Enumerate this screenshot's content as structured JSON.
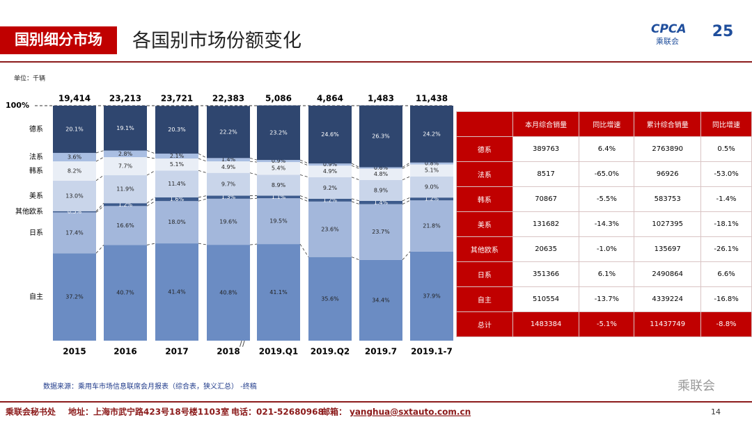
{
  "header": {
    "section": "国别细分市场",
    "title": "各国别市场份额变化",
    "logo": "CPCA",
    "logo_sub": "乘联会"
  },
  "chart_data": {
    "type": "stacked_bar",
    "unit": "单位：千辆",
    "categories": [
      "2015",
      "2016",
      "2017",
      "2018",
      "2019.Q1",
      "2019.Q2",
      "2019.7",
      "2019.1-7"
    ],
    "totals": {
      "values": [
        19414,
        23213,
        23721,
        22383,
        5086,
        4864,
        1483,
        11438
      ],
      "value_labels": [
        "19,414",
        "23,213",
        "23,721",
        "22,383",
        "5,086",
        "4,864",
        "1,483",
        "11,438"
      ]
    },
    "ylim": [
      0,
      100
    ],
    "yticks": [
      {
        "value": 100,
        "label": "100%"
      }
    ],
    "series": [
      {
        "name": "自主",
        "color": "#6b8cc3",
        "values": [
          37.2,
          40.7,
          41.4,
          40.8,
          41.1,
          35.6,
          34.4,
          37.9
        ],
        "value_labels": [
          "37.2%",
          "40.7%",
          "41.4%",
          "40.8%",
          "41.1%",
          "35.6%",
          "34.4%",
          "37.9%"
        ]
      },
      {
        "name": "日系",
        "color": "#a3b7db",
        "values": [
          17.4,
          16.6,
          18.0,
          19.6,
          19.5,
          23.6,
          23.7,
          21.8
        ],
        "value_labels": [
          "17.4%",
          "16.6%",
          "18.0%",
          "19.6%",
          "19.5%",
          "23.6%",
          "23.7%",
          "21.8%"
        ]
      },
      {
        "name": "其他欧系",
        "color": "#3d5b8c",
        "values": [
          0.5,
          1.2,
          1.6,
          1.3,
          1.1,
          1.2,
          1.4,
          1.2
        ],
        "value_labels": [
          "0.5%",
          "1.2%",
          "1.6%",
          "1.3%",
          "1.1%",
          "1.2%",
          "1.4%",
          "1.2%"
        ]
      },
      {
        "name": "美系",
        "color": "#c9d5ea",
        "values": [
          13.0,
          11.9,
          11.4,
          9.7,
          8.9,
          9.2,
          8.9,
          9.0
        ],
        "value_labels": [
          "13.0%",
          "11.9%",
          "11.4%",
          "9.7%",
          "8.9%",
          "9.2%",
          "8.9%",
          "9.0%"
        ]
      },
      {
        "name": "韩系",
        "color": "#e9eef6",
        "values": [
          8.2,
          7.7,
          5.1,
          4.9,
          5.4,
          4.9,
          4.8,
          5.1
        ],
        "value_labels": [
          "8.2%",
          "7.7%",
          "5.1%",
          "4.9%",
          "5.4%",
          "4.9%",
          "4.8%",
          "5.1%"
        ]
      },
      {
        "name": "法系",
        "color": "#a9bee2",
        "values": [
          3.6,
          2.8,
          2.1,
          1.4,
          0.9,
          0.9,
          0.6,
          0.8
        ],
        "value_labels": [
          "3.6%",
          "2.8%",
          "2.1%",
          "1.4%",
          "0.9%",
          "0.9%",
          "0.6%",
          "0.8%"
        ]
      },
      {
        "name": "德系",
        "color": "#2f466f",
        "values": [
          20.1,
          19.1,
          20.3,
          22.2,
          23.2,
          24.6,
          26.3,
          24.2
        ],
        "value_labels": [
          "20.1%",
          "19.1%",
          "20.3%",
          "22.2%",
          "23.2%",
          "24.6%",
          "26.3%",
          "24.2%"
        ]
      }
    ]
  },
  "table": {
    "header": [
      "本月综合销量",
      "同比增速",
      "累计综合销量",
      "同比增速"
    ],
    "rows": [
      [
        "德系",
        "389763",
        "6.4%",
        "2763890",
        "0.5%"
      ],
      [
        "法系",
        "8517",
        "-65.0%",
        "96926",
        "-53.0%"
      ],
      [
        "韩系",
        "70867",
        "-5.5%",
        "583753",
        "-1.4%"
      ],
      [
        "美系",
        "131682",
        "-14.3%",
        "1027395",
        "-18.1%"
      ],
      [
        "其他欧系",
        "20635",
        "-1.0%",
        "135697",
        "-26.1%"
      ],
      [
        "日系",
        "351366",
        "6.1%",
        "2490864",
        "6.6%"
      ],
      [
        "自主",
        "510554",
        "-13.7%",
        "4339224",
        "-16.8%"
      ],
      [
        "总计",
        "1483384",
        "-5.1%",
        "11437749",
        "-8.8%"
      ]
    ]
  },
  "source": "数据来源：乘用车市场信息联席会月报表（综合表，狭义汇总） -终稿",
  "watermark": "乘联会",
  "footer": {
    "org": "乘联会秘书处",
    "address": "地址：上海市武宁路423号18号楼1103室",
    "phone": "电话：021-52680968",
    "email_label": "邮箱：",
    "email": "yanghua@sxtauto.com.cn",
    "page": "14"
  }
}
